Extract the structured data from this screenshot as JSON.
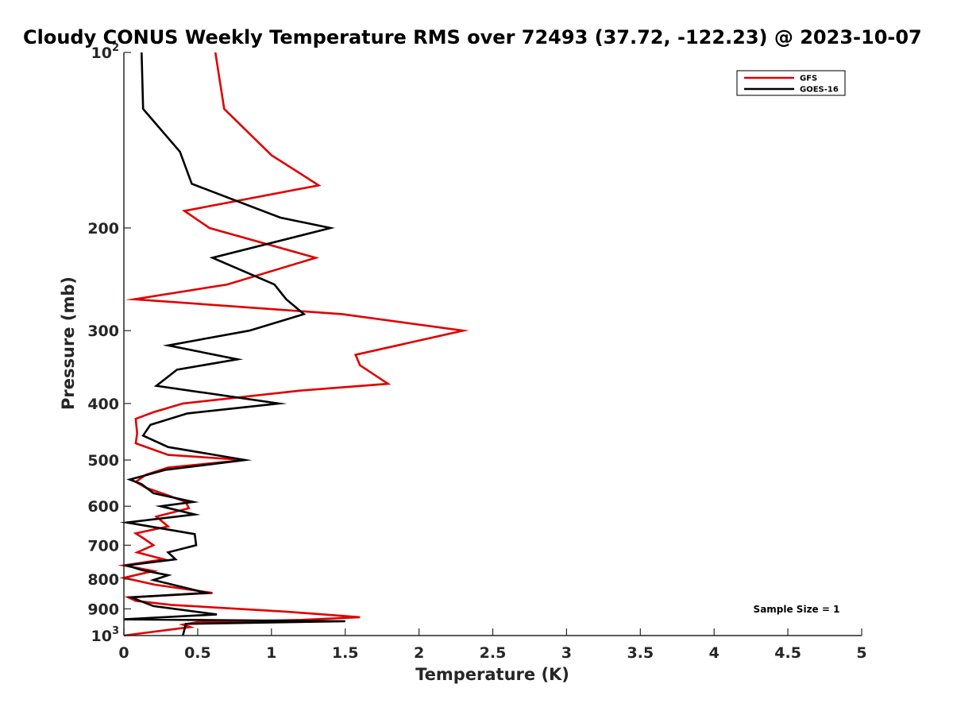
{
  "chart_data": {
    "type": "line",
    "title": "Cloudy CONUS Weekly Temperature RMS over 72493 (37.72, -122.23) @ 2023-10-07",
    "xlabel": "Temperature (K)",
    "ylabel": "Pressure (mb)",
    "xlim": [
      0,
      5
    ],
    "ylim": [
      100,
      1000
    ],
    "y_scale": "log",
    "y_reversed": true,
    "grid": false,
    "legend_position": "top-right",
    "x_ticks": [
      0,
      0.5,
      1,
      1.5,
      2,
      2.5,
      3,
      3.5,
      4,
      4.5,
      5
    ],
    "x_tick_labels": [
      "0",
      "0.5",
      "1",
      "1.5",
      "2",
      "2.5",
      "3",
      "3.5",
      "4",
      "4.5",
      "5"
    ],
    "y_ticks": [
      100,
      200,
      300,
      400,
      500,
      600,
      700,
      800,
      900,
      1000
    ],
    "y_tick_labels": [
      {
        "base": "10",
        "exp": "2"
      },
      {
        "base": "200",
        "exp": ""
      },
      {
        "base": "300",
        "exp": ""
      },
      {
        "base": "400",
        "exp": ""
      },
      {
        "base": "500",
        "exp": ""
      },
      {
        "base": "600",
        "exp": ""
      },
      {
        "base": "700",
        "exp": ""
      },
      {
        "base": "800",
        "exp": ""
      },
      {
        "base": "900",
        "exp": ""
      },
      {
        "base": "10",
        "exp": "3"
      }
    ],
    "annotation": "Sample Size = 1",
    "series": [
      {
        "name": "GFS",
        "color": "#e00000",
        "points": [
          [
            0.62,
            100
          ],
          [
            0.68,
            125
          ],
          [
            1.0,
            150
          ],
          [
            1.32,
            169
          ],
          [
            0.41,
            187
          ],
          [
            0.58,
            200
          ],
          [
            1.3,
            225
          ],
          [
            0.7,
            250
          ],
          [
            0.07,
            265
          ],
          [
            1.48,
            281
          ],
          [
            2.3,
            300
          ],
          [
            1.57,
            330
          ],
          [
            1.6,
            344
          ],
          [
            1.79,
            370
          ],
          [
            1.2,
            380
          ],
          [
            0.4,
            400
          ],
          [
            0.2,
            414
          ],
          [
            0.08,
            425
          ],
          [
            0.09,
            450
          ],
          [
            0.08,
            468
          ],
          [
            0.3,
            490
          ],
          [
            0.82,
            500
          ],
          [
            0.3,
            515
          ],
          [
            0.15,
            530
          ],
          [
            0.08,
            545
          ],
          [
            0.15,
            558
          ],
          [
            0.3,
            575
          ],
          [
            0.42,
            590
          ],
          [
            0.44,
            605
          ],
          [
            0.22,
            625
          ],
          [
            0.3,
            650
          ],
          [
            0.08,
            668
          ],
          [
            0.14,
            683
          ],
          [
            0.2,
            700
          ],
          [
            0.09,
            720
          ],
          [
            0.27,
            740
          ],
          [
            0.0,
            758
          ],
          [
            0.2,
            775
          ],
          [
            0.0,
            796
          ],
          [
            0.21,
            818
          ],
          [
            0.6,
            845
          ],
          [
            0.03,
            860
          ],
          [
            0.08,
            872
          ],
          [
            0.32,
            886
          ],
          [
            1.1,
            910
          ],
          [
            1.6,
            930
          ],
          [
            1.2,
            940
          ],
          [
            0.5,
            948
          ],
          [
            0.4,
            958
          ],
          [
            0.45,
            967
          ],
          [
            0.0,
            1000
          ]
        ]
      },
      {
        "name": "GOES-16",
        "color": "#000000",
        "points": [
          [
            0.12,
            100
          ],
          [
            0.13,
            125
          ],
          [
            0.38,
            148
          ],
          [
            0.46,
            168
          ],
          [
            1.06,
            192
          ],
          [
            1.4,
            200
          ],
          [
            0.6,
            225
          ],
          [
            1.02,
            250
          ],
          [
            1.1,
            265
          ],
          [
            1.22,
            281
          ],
          [
            0.85,
            300
          ],
          [
            0.3,
            318
          ],
          [
            0.77,
            336
          ],
          [
            0.36,
            350
          ],
          [
            0.22,
            373
          ],
          [
            1.05,
            400
          ],
          [
            0.43,
            416
          ],
          [
            0.18,
            435
          ],
          [
            0.13,
            454
          ],
          [
            0.3,
            475
          ],
          [
            0.82,
            500
          ],
          [
            0.28,
            520
          ],
          [
            0.16,
            530
          ],
          [
            0.04,
            540
          ],
          [
            0.12,
            550
          ],
          [
            0.2,
            570
          ],
          [
            0.47,
            590
          ],
          [
            0.25,
            600
          ],
          [
            0.48,
            620
          ],
          [
            0.02,
            640
          ],
          [
            0.48,
            670
          ],
          [
            0.49,
            700
          ],
          [
            0.3,
            720
          ],
          [
            0.35,
            740
          ],
          [
            0.02,
            758
          ],
          [
            0.12,
            772
          ],
          [
            0.3,
            788
          ],
          [
            0.2,
            803
          ],
          [
            0.56,
            845
          ],
          [
            0.05,
            860
          ],
          [
            0.2,
            890
          ],
          [
            0.63,
            920
          ],
          [
            0.0,
            938
          ],
          [
            1.5,
            945
          ],
          [
            0.42,
            955
          ],
          [
            0.4,
            1000
          ]
        ]
      }
    ]
  }
}
